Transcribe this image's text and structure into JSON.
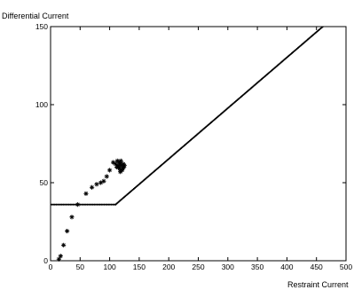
{
  "chart_data": {
    "type": "scatter",
    "title": "",
    "ylabel": "Differential Current",
    "xlabel": "Restraint Current",
    "xlim": [
      0,
      500
    ],
    "ylim": [
      0,
      150
    ],
    "x_ticks": [
      0,
      50,
      100,
      150,
      200,
      250,
      300,
      350,
      400,
      450,
      500
    ],
    "y_ticks": [
      0,
      50,
      100,
      150
    ],
    "grid": false,
    "series": [
      {
        "marker": "dots",
        "style": "characteristic",
        "values": [
          [
            0,
            36
          ],
          [
            110,
            36
          ],
          [
            470,
            153
          ]
        ]
      },
      {
        "marker": "star",
        "style": "fault-trajectory",
        "x": [
          14,
          17,
          22,
          28,
          36,
          46,
          60,
          70,
          78,
          85,
          90,
          95,
          100,
          106,
          110,
          113,
          115,
          118,
          120,
          122,
          124,
          118,
          112,
          116,
          121,
          125,
          119,
          114,
          117,
          123
        ],
        "y": [
          1,
          3,
          10,
          19,
          28,
          36,
          43,
          47,
          49,
          50,
          51,
          54,
          58,
          63,
          62,
          64,
          60,
          62,
          61,
          59,
          60,
          57,
          60,
          63,
          58,
          61,
          64,
          61,
          59,
          62
        ]
      }
    ]
  }
}
